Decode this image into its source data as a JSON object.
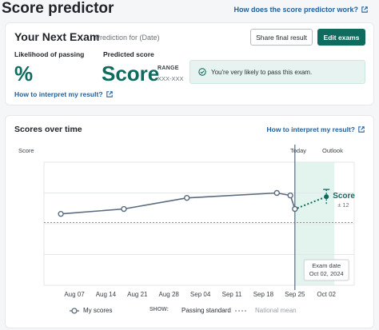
{
  "header": {
    "title": "Score predictor",
    "help_link": "How does the score predictor work?"
  },
  "summary": {
    "title": "Your Next Exam",
    "subtitle": "Prediction for (Date)",
    "share_button": "Share final result",
    "edit_button": "Edit  exams",
    "likelihood_label": "Likelihood of passing",
    "likelihood_value": "%",
    "predicted_label": "Predicted score",
    "predicted_value": "Score",
    "range_label": "RANGE",
    "range_value": "XXX-XXX",
    "alert_text": "You're very likely to pass this exam.",
    "interpret_link": "How to interpret my result?"
  },
  "scores": {
    "title": "Scores over time",
    "interpret_link": "How to interpret my result?",
    "y_label": "Score",
    "today_label": "Today",
    "outlook_label": "Outlook",
    "exam_date_label": "Exam date",
    "exam_date_value": "Oct 02, 2024",
    "prediction_label": "Score",
    "prediction_margin": "± 12"
  },
  "legend": {
    "my_scores": "My scores",
    "show_label": "SHOW:",
    "passing_standard": "Passing standard",
    "national_mean": "National mean"
  },
  "colors": {
    "accent": "#0f6b5e",
    "link": "#1f5f9b",
    "line": "#5a6b7d",
    "outlook_band": "#e3f4ef"
  },
  "chart_data": {
    "type": "line",
    "x_ticks": [
      "Aug 07",
      "Aug 14",
      "Aug 21",
      "Aug 28",
      "Sep 04",
      "Sep 11",
      "Sep 18",
      "Sep 25",
      "Oct 02"
    ],
    "series": [
      {
        "name": "My scores",
        "points": [
          {
            "x": "Aug 04",
            "y": 0.58
          },
          {
            "x": "Aug 18",
            "y": 0.62
          },
          {
            "x": "Sep 01",
            "y": 0.71
          },
          {
            "x": "Sep 21",
            "y": 0.75
          },
          {
            "x": "Sep 24",
            "y": 0.73
          },
          {
            "x": "Sep 25",
            "y": 0.62
          }
        ]
      }
    ],
    "prediction": {
      "from": {
        "x": "Sep 25",
        "y": 0.62
      },
      "to": {
        "x": "Oct 02",
        "y": 0.72
      }
    },
    "passing_standard": 0.51,
    "today": "Sep 25",
    "exam_date": "Oct 02"
  }
}
